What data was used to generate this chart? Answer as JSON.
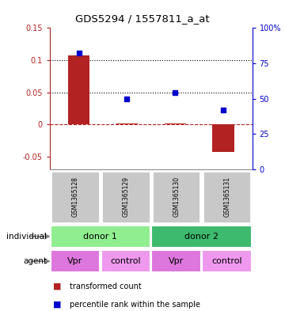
{
  "title": "GDS5294 / 1557811_a_at",
  "samples": [
    "GSM1365128",
    "GSM1365129",
    "GSM1365130",
    "GSM1365131"
  ],
  "bar_values": [
    0.107,
    0.001,
    0.001,
    -0.043
  ],
  "dot_values": [
    0.111,
    0.04,
    0.05,
    0.022
  ],
  "ylim_left": [
    -0.07,
    0.15
  ],
  "yticks_left": [
    -0.05,
    0.0,
    0.05,
    0.1,
    0.15
  ],
  "ylim_right": [
    0,
    100
  ],
  "yticks_right": [
    0,
    25,
    50,
    75,
    100
  ],
  "hlines": [
    0.1,
    0.05
  ],
  "bar_color": "#b22222",
  "dot_color": "#0000cc",
  "hline_dotted_color": "#000000",
  "zero_line_color": "#b22222",
  "bg_color": "#ffffff",
  "sample_box_color": "#c8c8c8",
  "donor1_color": "#90ee90",
  "donor2_color": "#3dba6e",
  "vpr_color": "#dd77dd",
  "control_color": "#ee99ee",
  "individual_label": "individual",
  "agent_label": "agent",
  "legend_bar_label": "transformed count",
  "legend_dot_label": "percentile rank within the sample",
  "donors": [
    [
      "donor 1",
      0,
      2
    ],
    [
      "donor 2",
      2,
      4
    ]
  ],
  "agents": [
    "Vpr",
    "control",
    "Vpr",
    "control"
  ]
}
